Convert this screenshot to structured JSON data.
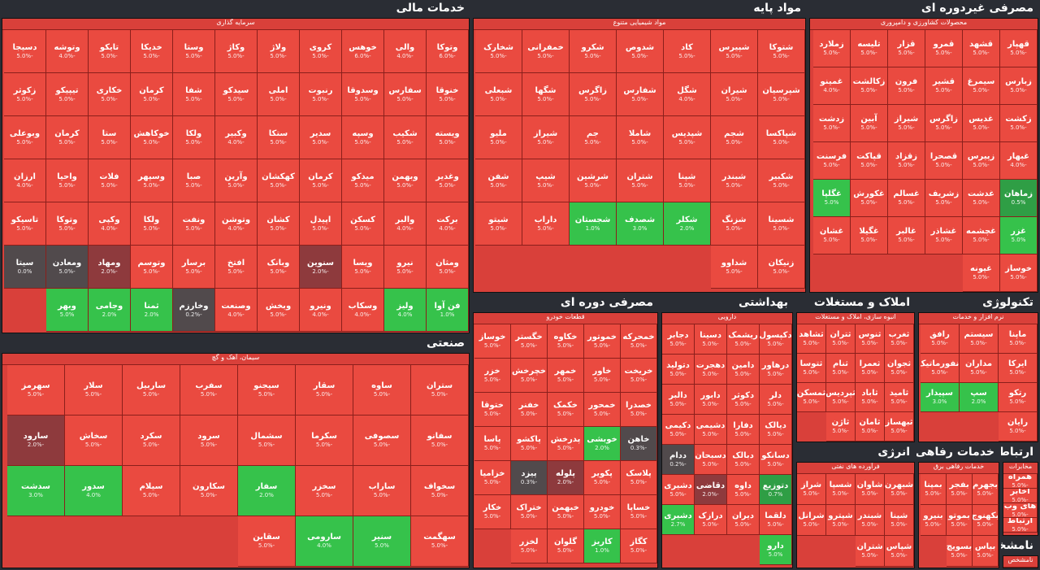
{
  "sectors": [
    {
      "id": "financial",
      "title": "خدمات مالی",
      "sub": "سرمایه گذاری",
      "tiles": [
        [
          "وتوکا",
          "-6.0%"
        ],
        [
          "والی",
          "-4.0%"
        ],
        [
          "خوهس",
          "-6.0%"
        ],
        [
          "کروی",
          "-5.0%"
        ],
        [
          "ولاژ",
          "-5.0%"
        ],
        [
          "وکاژ",
          "-5.0%"
        ],
        [
          "وستا",
          "-5.0%"
        ],
        [
          "خدیکا",
          "-5.0%"
        ],
        [
          "تایکو",
          "-5.0%"
        ],
        [
          "وتوشه",
          "-4.0%"
        ],
        [
          "دسیجا",
          "-5.0%"
        ],
        [
          "خنوقا",
          "-5.0%"
        ],
        [
          "سفارس",
          "-5.0%"
        ],
        [
          "وسدوقا",
          "-5.0%"
        ],
        [
          "رنبوت",
          "-5.0%"
        ],
        [
          "املی",
          "-5.0%"
        ],
        [
          "سیدکو",
          "-5.0%"
        ],
        [
          "شفا",
          "-5.0%"
        ],
        [
          "کرمان",
          "-5.0%"
        ],
        [
          "خکاری",
          "-5.0%"
        ],
        [
          "تیپیکو",
          "-5.0%"
        ],
        [
          "زکوثر",
          "-5.0%"
        ],
        [
          "ویسته",
          "-5.0%"
        ],
        [
          "شکیب",
          "-5.0%"
        ],
        [
          "وسپه",
          "-5.0%"
        ],
        [
          "سدیر",
          "-5.0%"
        ],
        [
          "ستکا",
          "-5.0%"
        ],
        [
          "وکبیر",
          "-4.0%"
        ],
        [
          "ولکا",
          "-5.0%"
        ],
        [
          "خوکاهش",
          "-5.0%"
        ],
        [
          "ستا",
          "-5.0%"
        ],
        [
          "کرمان",
          "-5.0%"
        ],
        [
          "وبوعلی",
          "-5.0%"
        ],
        [
          "وغدیر",
          "-5.0%"
        ],
        [
          "وبهمن",
          "-5.0%"
        ],
        [
          "میدکو",
          "-5.0%"
        ],
        [
          "کرمان",
          "-5.0%"
        ],
        [
          "کهکشان",
          "-5.0%"
        ],
        [
          "وآرین",
          "-5.0%"
        ],
        [
          "صبا",
          "-5.0%"
        ],
        [
          "وسپهر",
          "-5.0%"
        ],
        [
          "فلات",
          "-5.0%"
        ],
        [
          "واحیا",
          "-5.0%"
        ],
        [
          "ارزان",
          "-4.0%"
        ],
        [
          "برکت",
          "-4.0%"
        ],
        [
          "والبر",
          "-4.0%"
        ],
        [
          "کسکن",
          "-5.0%"
        ],
        [
          "اپیدل",
          "-5.0%"
        ],
        [
          "کشان",
          "-5.0%"
        ],
        [
          "وتوشن",
          "-4.0%"
        ],
        [
          "ونفت",
          "-5.0%"
        ],
        [
          "ولکا",
          "-5.0%"
        ],
        [
          "وکپی",
          "-4.0%"
        ],
        [
          "وتوکا",
          "-5.0%"
        ],
        [
          "تاسیکو",
          "-5.0%"
        ],
        [
          "ومثان",
          "-5.0%"
        ],
        [
          "نیرو",
          "-5.0%"
        ],
        [
          "ویسا",
          "-5.0%"
        ],
        [
          "سنوین",
          "-2.0%",
          "br"
        ],
        [
          "وبانک",
          "-5.0%"
        ],
        [
          "افتخ",
          "-5.0%"
        ],
        [
          "برسار",
          "-5.0%"
        ],
        [
          "وتوسم",
          "-5.0%"
        ],
        [
          "ومهاد",
          "-2.0%",
          "br"
        ],
        [
          "ومعادن",
          "-5.0%",
          "gy"
        ],
        [
          "سیتا",
          "0.0%",
          "gy"
        ],
        [
          "فن آوا",
          "1.0%",
          "g"
        ],
        [
          "ولیز",
          "4.0%",
          "g"
        ],
        [
          "وسکاب",
          "-4.0%"
        ],
        [
          "ونیرو",
          "-4.0%"
        ],
        [
          "وبخش",
          "-5.0%"
        ],
        [
          "وصنعت",
          "-4.0%"
        ],
        [
          "وخارزم",
          "-0.2%",
          "gy"
        ],
        [
          "ثمنا",
          "2.0%",
          "g"
        ],
        [
          "وجامی",
          "2.0%",
          "g"
        ],
        [
          "وبهر",
          "5.0%",
          "g"
        ]
      ]
    },
    {
      "id": "basic",
      "title": "مواد پایه",
      "sub": "مواد شیمیایی متنوع",
      "tiles": [
        [
          "شتوکا",
          "-5.0%"
        ],
        [
          "شپیرس",
          "-5.0%"
        ],
        [
          "کاد",
          "-5.0%"
        ],
        [
          "شدوص",
          "-5.0%"
        ],
        [
          "شکرو",
          "-5.0%"
        ],
        [
          "خمفرانی",
          "-5.0%"
        ],
        [
          "شخارک",
          "-5.0%"
        ],
        [
          "شپرسیان",
          "-5.0%"
        ],
        [
          "شیران",
          "-5.0%"
        ],
        [
          "شگل",
          "-4.0%"
        ],
        [
          "شفارس",
          "-5.0%"
        ],
        [
          "زاگرس",
          "-5.0%"
        ],
        [
          "شگها",
          "-5.0%"
        ],
        [
          "شبعلی",
          "-5.0%"
        ],
        [
          "شپاکسا",
          "-5.0%"
        ],
        [
          "شجم",
          "-5.0%"
        ],
        [
          "شپدیس",
          "-5.0%"
        ],
        [
          "شاملا",
          "-5.0%"
        ],
        [
          "جم",
          "-5.0%"
        ],
        [
          "شیراز",
          "-5.0%"
        ],
        [
          "ملیو",
          "-5.0%"
        ],
        [
          "شکبیر",
          "-5.0%"
        ],
        [
          "شبندر",
          "-5.0%"
        ],
        [
          "شپنا",
          "-5.0%"
        ],
        [
          "شتران",
          "-5.0%"
        ],
        [
          "شرشین",
          "-5.0%"
        ],
        [
          "شیپ",
          "-5.0%"
        ],
        [
          "شفن",
          "-5.0%"
        ],
        [
          "شسینا",
          "-5.0%"
        ],
        [
          "شزنگ",
          "-5.0%"
        ],
        [
          "شکلر",
          "2.0%",
          "g"
        ],
        [
          "شصدف",
          "3.0%",
          "g"
        ],
        [
          "شجستان",
          "1.0%",
          "g"
        ],
        [
          "داراب",
          "-5.0%"
        ],
        [
          "شیتو",
          "-5.0%"
        ],
        [
          "زنیکان",
          "-5.0%"
        ],
        [
          "شداوو",
          "-5.0%"
        ]
      ]
    },
    {
      "id": "consumer",
      "title": "مصرفی غیردوره ای",
      "sub": "محصولات کشاورزی و دامپروری",
      "tiles": [
        [
          "قهپار",
          "-5.0%"
        ],
        [
          "قشهد",
          "-5.0%"
        ],
        [
          "قمرو",
          "-5.0%"
        ],
        [
          "قزار",
          "-5.0%"
        ],
        [
          "تلیسه",
          "-5.0%"
        ],
        [
          "زملارد",
          "-5.0%"
        ],
        [
          "زبارس",
          "-5.0%"
        ],
        [
          "سیمرغ",
          "-5.0%"
        ],
        [
          "قشیر",
          "-5.0%"
        ],
        [
          "فرون",
          "-5.0%"
        ],
        [
          "زکالشت",
          "-5.0%"
        ],
        [
          "غمینو",
          "-4.0%"
        ],
        [
          "زکشت",
          "-5.0%"
        ],
        [
          "غدیس",
          "-5.0%"
        ],
        [
          "زاگرس",
          "-5.0%"
        ],
        [
          "شیراز",
          "-5.0%"
        ],
        [
          "آبین",
          "-5.0%"
        ],
        [
          "زدشت",
          "-5.0%"
        ],
        [
          "غبهار",
          "-4.0%"
        ],
        [
          "زپیرس",
          "-5.0%"
        ],
        [
          "قصحرا",
          "-5.0%"
        ],
        [
          "زقزاد",
          "-5.0%"
        ],
        [
          "قپاکت",
          "-5.0%"
        ],
        [
          "فرسنت",
          "-5.0%"
        ],
        [
          "زماهان",
          "0.5%",
          "gl"
        ],
        [
          "غدشت",
          "-5.0%"
        ],
        [
          "زشریف",
          "-5.0%"
        ],
        [
          "غسالم",
          "-5.0%"
        ],
        [
          "غکورش",
          "-5.0%"
        ],
        [
          "غگلپا",
          "5.0%",
          "g"
        ],
        [
          "غزر",
          "5.0%",
          "g"
        ],
        [
          "غچشمه",
          "-5.0%"
        ],
        [
          "غشاذر",
          "-5.0%"
        ],
        [
          "غالبر",
          "-5.0%"
        ],
        [
          "غگیلا",
          "-5.0%"
        ],
        [
          "غشان",
          "-5.0%"
        ],
        [
          "خوساز",
          "-5.0%"
        ],
        [
          "غپونه",
          "-5.0%"
        ]
      ]
    },
    {
      "id": "periodic",
      "title": "مصرفی دوره ای",
      "sub": "قطعات خودرو",
      "tiles": [
        [
          "خمحرکه",
          "-5.0%"
        ],
        [
          "خموتور",
          "-5.0%"
        ],
        [
          "خکاوه",
          "-5.0%"
        ],
        [
          "خگستر",
          "-5.0%"
        ],
        [
          "خوساز",
          "-5.0%"
        ],
        [
          "خریخت",
          "-5.0%"
        ],
        [
          "خاور",
          "-5.0%"
        ],
        [
          "خمهر",
          "-5.0%"
        ],
        [
          "خچرخش",
          "-5.0%"
        ],
        [
          "خزر",
          "-5.0%"
        ],
        [
          "خصدرا",
          "-5.0%"
        ],
        [
          "خمحور",
          "-5.0%"
        ],
        [
          "خکمک",
          "-5.0%"
        ],
        [
          "خفنر",
          "-5.0%"
        ],
        [
          "ختوقا",
          "-5.0%"
        ],
        [
          "خاهن",
          "-0.3%",
          "gy"
        ],
        [
          "خوبشی",
          "2.0%",
          "g"
        ],
        [
          "پدرخش",
          "-5.0%"
        ],
        [
          "پاکشو",
          "-5.0%"
        ],
        [
          "پاسا",
          "-5.0%"
        ],
        [
          "پلاسک",
          "-5.0%"
        ],
        [
          "پکویر",
          "-5.0%"
        ],
        [
          "پلوله",
          "-2.0%",
          "br"
        ],
        [
          "پیزد",
          "-0.3%",
          "gy"
        ],
        [
          "خزامیا",
          "-5.0%"
        ],
        [
          "خساپا",
          "-5.0%"
        ],
        [
          "خودرو",
          "-5.0%"
        ],
        [
          "خبهمن",
          "-5.0%"
        ],
        [
          "ختراک",
          "-5.0%"
        ],
        [
          "خکار",
          "-5.0%"
        ],
        [
          "کگاز",
          "-5.0%"
        ],
        [
          "کاریز",
          "1.0%",
          "g"
        ],
        [
          "گلوان",
          "-5.0%"
        ],
        [
          "لخزر",
          "-5.0%"
        ]
      ]
    },
    {
      "id": "health",
      "title": "بهداشتی",
      "sub": "دارویی",
      "tiles": [
        [
          "دکپسول",
          "-5.0%"
        ],
        [
          "ریشمک",
          "-5.0%"
        ],
        [
          "دسینا",
          "-5.0%"
        ],
        [
          "دجابر",
          "-5.0%"
        ],
        [
          "درهاور",
          "-5.0%"
        ],
        [
          "دامین",
          "-5.0%"
        ],
        [
          "دهجرت",
          "-5.0%"
        ],
        [
          "دتولید",
          "-5.0%"
        ],
        [
          "دلر",
          "-5.0%"
        ],
        [
          "دکوثر",
          "-5.0%"
        ],
        [
          "دابور",
          "-5.0%"
        ],
        [
          "دالبر",
          "-5.0%"
        ],
        [
          "دیالک",
          "-5.0%"
        ],
        [
          "دفارا",
          "-5.0%"
        ],
        [
          "دشیمی",
          "-5.0%"
        ],
        [
          "دکیمی",
          "-5.0%"
        ],
        [
          "دسانکو",
          "-5.0%"
        ],
        [
          "دبالک",
          "-5.0%"
        ],
        [
          "دسبحان",
          "-5.0%"
        ],
        [
          "ددام",
          "-0.2%",
          "gy"
        ],
        [
          "دتوزیع",
          "0.7%",
          "gl"
        ],
        [
          "داوه",
          "-5.0%"
        ],
        [
          "دقاضی",
          "-2.0%",
          "br"
        ],
        [
          "دشیری",
          "-5.0%"
        ],
        [
          "دلقما",
          "-5.0%"
        ],
        [
          "دیران",
          "-5.0%"
        ],
        [
          "درازک",
          "-5.0%"
        ],
        [
          "دشیری",
          "2.7%",
          "g"
        ],
        [
          "دارو",
          "5.0%",
          "g"
        ]
      ]
    },
    {
      "id": "realestate",
      "title": "املاک و مستغلات",
      "sub": "انبوه سازی، املاک و مستغلات",
      "tiles": [
        [
          "ثغرب",
          "-5.0%"
        ],
        [
          "ثنوس",
          "-5.0%"
        ],
        [
          "ثتران",
          "-5.0%"
        ],
        [
          "ثشاهد",
          "-5.0%"
        ],
        [
          "ثجوان",
          "-5.0%"
        ],
        [
          "ثعمرا",
          "-5.0%"
        ],
        [
          "ثنام",
          "-5.0%"
        ],
        [
          "ثتوسا",
          "-5.0%"
        ],
        [
          "ثامید",
          "-5.0%"
        ],
        [
          "ثاباد",
          "-5.0%"
        ],
        [
          "ثپردیس",
          "-5.0%"
        ],
        [
          "ثمسکن",
          "-5.0%"
        ],
        [
          "ثبهساز",
          "-5.0%"
        ],
        [
          "ثامان",
          "-5.0%"
        ],
        [
          "ثاژن",
          "-5.0%"
        ]
      ]
    },
    {
      "id": "tech",
      "title": "تکنولوژی",
      "sub": "نرم افزار و خدمات",
      "tiles": [
        [
          "ماپنا",
          "-5.0%"
        ],
        [
          "سیستم",
          "-5.0%"
        ],
        [
          "رافق",
          "-5.0%"
        ],
        [
          "ایرکا",
          "-5.0%"
        ],
        [
          "مداران",
          "-5.0%"
        ],
        [
          "انفورماتیک",
          "-5.0%"
        ],
        [
          "رتکو",
          "-5.0%"
        ],
        [
          "سپ",
          "2.0%",
          "g"
        ],
        [
          "سپیدار",
          "3.0%",
          "g"
        ],
        [
          "رایان",
          "-5.0%"
        ]
      ]
    },
    {
      "id": "industrial",
      "title": "صنعتی",
      "sub": "سیمان، آهک و گچ",
      "tiles": [
        [
          "ستران",
          "-5.0%"
        ],
        [
          "ساوه",
          "-5.0%"
        ],
        [
          "سقار",
          "-5.0%"
        ],
        [
          "سیجنو",
          "-5.0%"
        ],
        [
          "سفرب",
          "-5.0%"
        ],
        [
          "ساربیل",
          "-5.0%"
        ],
        [
          "سلار",
          "-5.0%"
        ],
        [
          "سهرمز",
          "-5.0%"
        ],
        [
          "سفانو",
          "-5.0%"
        ],
        [
          "سصوفی",
          "-5.0%"
        ],
        [
          "سکرما",
          "-5.0%"
        ],
        [
          "سشمال",
          "-5.0%"
        ],
        [
          "سرود",
          "-5.0%"
        ],
        [
          "سکرد",
          "-5.0%"
        ],
        [
          "سخاش",
          "-5.0%"
        ],
        [
          "سارود",
          "-2.0%",
          "br"
        ],
        [
          "سخواف",
          "-5.0%"
        ],
        [
          "ساراب",
          "-5.0%"
        ],
        [
          "سخزر",
          "-5.0%"
        ],
        [
          "سفار",
          "2.0%",
          "g"
        ],
        [
          "سکارون",
          "-5.0%"
        ],
        [
          "سیلام",
          "-5.0%"
        ],
        [
          "سدور",
          "4.0%",
          "g"
        ],
        [
          "سدشت",
          "3.0%",
          "g"
        ],
        [
          "سهگمت",
          "-5.0%"
        ],
        [
          "سنیر",
          "5.0%",
          "g"
        ],
        [
          "سارومی",
          "4.0%",
          "g"
        ],
        [
          "سقاین",
          "-5.0%"
        ]
      ]
    },
    {
      "id": "energy",
      "title": "انرژی",
      "sub": "فرآورده های نفتی",
      "tiles": [
        [
          "شبهرن",
          "-5.0%"
        ],
        [
          "شاوان",
          "-5.0%"
        ],
        [
          "شسپا",
          "-5.0%"
        ],
        [
          "شراز",
          "-5.0%"
        ],
        [
          "شپنا",
          "-5.0%"
        ],
        [
          "شبندر",
          "-5.0%"
        ],
        [
          "شپترو",
          "-5.0%"
        ],
        [
          "شرانل",
          "-5.0%"
        ],
        [
          "شپاس",
          "-5.0%"
        ],
        [
          "شتران",
          "-5.0%"
        ]
      ]
    },
    {
      "id": "welfare",
      "title": "خدمات رفاهی",
      "sub": "خدمات رفاهی برق",
      "tiles": [
        [
          "بجهرم",
          "-5.0%"
        ],
        [
          "بفجر",
          "-5.0%"
        ],
        [
          "بمپنا",
          "-5.0%"
        ],
        [
          "بکهنوج",
          "-5.0%"
        ],
        [
          "بموتو",
          "-5.0%"
        ],
        [
          "بنیرو",
          "-5.0%"
        ],
        [
          "بپاس",
          "-5.0%"
        ],
        [
          "بسویچ",
          "-5.0%"
        ]
      ]
    },
    {
      "id": "comm",
      "title": "ارتباطی",
      "sub": "مخابرات",
      "tiles": [
        [
          "همراه",
          "-5.0%"
        ],
        [
          "اخابر",
          "-5.0%"
        ],
        [
          "های وب",
          "-5.0%"
        ],
        [
          "ارتباط",
          "-5.0%"
        ]
      ]
    },
    {
      "id": "unknown",
      "title": "نامشخص",
      "sub": "نامشخص",
      "tiles": []
    }
  ]
}
